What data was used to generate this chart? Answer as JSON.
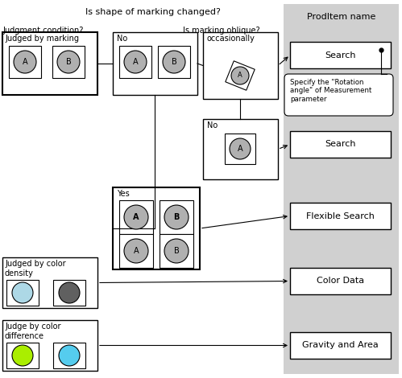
{
  "title": "Is shape of marking changed?",
  "oblique_label": "Is marking oblique?",
  "judgment_label": "Judgment condition?",
  "prod_item_label": "ProdItem name",
  "prod_items": [
    "Search",
    "Search",
    "Flexible Search",
    "Color Data",
    "Gravity and Area"
  ],
  "rotation_note": "Specify the \"Rotation\nangle\" of Measurement\nparameter",
  "bg_color": "#ffffff",
  "gray_panel_color": "#d0d0d0",
  "box_facecolor": "#ffffff",
  "box_edgecolor": "#000000",
  "circle_gray": "#b0b0b0",
  "circle_light_blue": "#add8e6",
  "circle_dark_gray": "#606060",
  "circle_green": "#aaee00",
  "circle_cyan": "#55ccee",
  "arrow_color": "#000000",
  "font_size": 8,
  "small_font_size": 7
}
